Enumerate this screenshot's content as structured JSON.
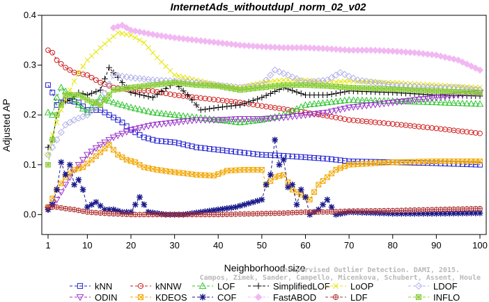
{
  "chart_data": {
    "type": "line",
    "title": "InternetAds_withoutdupl_norm_02_v02",
    "xlabel": "Neighborhood size",
    "ylabel": "Adjusted AP",
    "xlim": [
      1,
      100
    ],
    "ylim": [
      -0.04,
      0.4
    ],
    "xticks": [
      "1",
      "10",
      "20",
      "30",
      "40",
      "50",
      "60",
      "70",
      "80",
      "90",
      "100"
    ],
    "yticks": [
      "0.0",
      "0.1",
      "0.2",
      "0.3",
      "0.4"
    ],
    "grid": false,
    "legend_position": "bottom",
    "credit": "Campos, Zimek, Sander, Campello, Micenkova, Schubert, Assent, Houle",
    "credit_line2": "Unsupervised Outlier Detection. DAMI, 2015.",
    "series": [
      {
        "name": "kNN",
        "color": "#1f1fd0",
        "marker": "square",
        "points": [
          [
            1,
            0.26
          ],
          [
            2,
            0.245
          ],
          [
            3,
            0.22
          ],
          [
            5,
            0.23
          ],
          [
            8,
            0.225
          ],
          [
            10,
            0.21
          ],
          [
            13,
            0.21
          ],
          [
            15,
            0.2
          ],
          [
            18,
            0.185
          ],
          [
            20,
            0.17
          ],
          [
            23,
            0.155
          ],
          [
            26,
            0.148
          ],
          [
            30,
            0.145
          ],
          [
            35,
            0.135
          ],
          [
            40,
            0.13
          ],
          [
            45,
            0.125
          ],
          [
            50,
            0.12
          ],
          [
            55,
            0.118
          ],
          [
            60,
            0.115
          ],
          [
            65,
            0.112
          ],
          [
            70,
            0.107
          ],
          [
            80,
            0.105
          ],
          [
            90,
            0.103
          ],
          [
            100,
            0.1
          ]
        ]
      },
      {
        "name": "kNNW",
        "color": "#d01f1f",
        "marker": "circle",
        "points": [
          [
            1,
            0.33
          ],
          [
            2,
            0.325
          ],
          [
            3,
            0.31
          ],
          [
            5,
            0.295
          ],
          [
            7,
            0.285
          ],
          [
            10,
            0.28
          ],
          [
            13,
            0.265
          ],
          [
            16,
            0.255
          ],
          [
            20,
            0.25
          ],
          [
            25,
            0.248
          ],
          [
            30,
            0.24
          ],
          [
            35,
            0.235
          ],
          [
            40,
            0.23
          ],
          [
            45,
            0.225
          ],
          [
            50,
            0.218
          ],
          [
            55,
            0.212
          ],
          [
            60,
            0.205
          ],
          [
            65,
            0.198
          ],
          [
            70,
            0.19
          ],
          [
            80,
            0.182
          ],
          [
            90,
            0.173
          ],
          [
            100,
            0.163
          ]
        ]
      },
      {
        "name": "LOF",
        "color": "#2ec42e",
        "marker": "triangle-up",
        "points": [
          [
            1,
            0.205
          ],
          [
            2,
            0.2
          ],
          [
            3,
            0.235
          ],
          [
            4,
            0.255
          ],
          [
            6,
            0.24
          ],
          [
            8,
            0.22
          ],
          [
            10,
            0.205
          ],
          [
            13,
            0.235
          ],
          [
            16,
            0.225
          ],
          [
            20,
            0.215
          ],
          [
            25,
            0.205
          ],
          [
            30,
            0.2
          ],
          [
            35,
            0.195
          ],
          [
            40,
            0.19
          ],
          [
            45,
            0.185
          ],
          [
            50,
            0.19
          ],
          [
            55,
            0.2
          ],
          [
            60,
            0.22
          ],
          [
            65,
            0.225
          ],
          [
            70,
            0.23
          ],
          [
            80,
            0.228
          ],
          [
            90,
            0.225
          ],
          [
            100,
            0.222
          ]
        ]
      },
      {
        "name": "SimplifiedLOF",
        "color": "#000000",
        "marker": "plus",
        "points": [
          [
            1,
            0.135
          ],
          [
            2,
            0.15
          ],
          [
            3,
            0.2
          ],
          [
            4,
            0.225
          ],
          [
            6,
            0.23
          ],
          [
            8,
            0.245
          ],
          [
            10,
            0.24
          ],
          [
            13,
            0.25
          ],
          [
            15,
            0.295
          ],
          [
            17,
            0.275
          ],
          [
            20,
            0.245
          ],
          [
            25,
            0.235
          ],
          [
            30,
            0.265
          ],
          [
            33,
            0.24
          ],
          [
            36,
            0.21
          ],
          [
            40,
            0.215
          ],
          [
            45,
            0.22
          ],
          [
            50,
            0.235
          ],
          [
            55,
            0.255
          ],
          [
            60,
            0.24
          ],
          [
            65,
            0.24
          ],
          [
            70,
            0.248
          ],
          [
            80,
            0.245
          ],
          [
            90,
            0.24
          ],
          [
            100,
            0.238
          ]
        ]
      },
      {
        "name": "LoOP",
        "color": "#e6e600",
        "marker": "cross",
        "points": [
          [
            1,
            0.12
          ],
          [
            2,
            0.16
          ],
          [
            4,
            0.21
          ],
          [
            6,
            0.25
          ],
          [
            8,
            0.285
          ],
          [
            10,
            0.31
          ],
          [
            13,
            0.335
          ],
          [
            17,
            0.365
          ],
          [
            20,
            0.36
          ],
          [
            23,
            0.345
          ],
          [
            26,
            0.315
          ],
          [
            30,
            0.28
          ],
          [
            35,
            0.27
          ],
          [
            40,
            0.26
          ],
          [
            45,
            0.255
          ],
          [
            50,
            0.265
          ],
          [
            55,
            0.27
          ],
          [
            60,
            0.27
          ],
          [
            65,
            0.265
          ],
          [
            70,
            0.268
          ],
          [
            80,
            0.265
          ],
          [
            90,
            0.26
          ],
          [
            100,
            0.255
          ]
        ]
      },
      {
        "name": "LDOF",
        "color": "#b0b0e8",
        "marker": "diamond",
        "points": [
          [
            1,
            0.12
          ],
          [
            3,
            0.15
          ],
          [
            5,
            0.18
          ],
          [
            7,
            0.19
          ],
          [
            10,
            0.2
          ],
          [
            13,
            0.225
          ],
          [
            16,
            0.28
          ],
          [
            20,
            0.275
          ],
          [
            25,
            0.27
          ],
          [
            30,
            0.268
          ],
          [
            35,
            0.265
          ],
          [
            40,
            0.26
          ],
          [
            45,
            0.255
          ],
          [
            50,
            0.26
          ],
          [
            53,
            0.29
          ],
          [
            56,
            0.28
          ],
          [
            60,
            0.265
          ],
          [
            65,
            0.27
          ],
          [
            68,
            0.285
          ],
          [
            72,
            0.27
          ],
          [
            80,
            0.26
          ],
          [
            90,
            0.255
          ],
          [
            95,
            0.255
          ],
          [
            100,
            0.25
          ]
        ]
      },
      {
        "name": "ODIN",
        "color": "#9932cc",
        "marker": "triangle-down",
        "points": [
          [
            1,
            0.01
          ],
          [
            3,
            0.03
          ],
          [
            5,
            0.06
          ],
          [
            7,
            0.09
          ],
          [
            10,
            0.12
          ],
          [
            13,
            0.14
          ],
          [
            16,
            0.155
          ],
          [
            20,
            0.17
          ],
          [
            25,
            0.18
          ],
          [
            30,
            0.185
          ],
          [
            35,
            0.19
          ],
          [
            40,
            0.19
          ],
          [
            45,
            0.192
          ],
          [
            50,
            0.192
          ],
          [
            55,
            0.195
          ],
          [
            60,
            0.2
          ],
          [
            65,
            0.205
          ],
          [
            70,
            0.215
          ],
          [
            80,
            0.225
          ],
          [
            90,
            0.235
          ],
          [
            100,
            0.245
          ]
        ]
      },
      {
        "name": "KDEOS",
        "color": "#f2a600",
        "marker": "square-x",
        "points": [
          [
            1,
            0.015
          ],
          [
            3,
            0.05
          ],
          [
            5,
            0.075
          ],
          [
            7,
            0.09
          ],
          [
            9,
            0.095
          ],
          [
            11,
            0.11
          ],
          [
            13,
            0.125
          ],
          [
            15,
            0.14
          ],
          [
            17,
            0.12
          ],
          [
            19,
            0.11
          ],
          [
            21,
            0.105
          ],
          [
            23,
            0.095
          ],
          [
            26,
            0.09
          ],
          [
            30,
            0.085
          ],
          [
            35,
            0.08
          ],
          [
            39,
            0.078
          ],
          [
            42,
            0.088
          ],
          [
            46,
            0.09
          ],
          [
            50,
            0.09
          ],
          [
            51,
            0.06
          ],
          [
            53,
            0.075
          ],
          [
            55,
            0.08
          ],
          [
            57,
            0.05
          ],
          [
            59,
            0.04
          ],
          [
            61,
            0.03
          ],
          [
            63,
            0.06
          ],
          [
            65,
            0.075
          ],
          [
            67,
            0.09
          ],
          [
            70,
            0.1
          ],
          [
            80,
            0.105
          ],
          [
            90,
            0.107
          ],
          [
            100,
            0.107
          ]
        ]
      },
      {
        "name": "COF",
        "color": "#1a1a8c",
        "marker": "asterisk",
        "points": [
          [
            1,
            0.01
          ],
          [
            2,
            0.02
          ],
          [
            3,
            0.05
          ],
          [
            4,
            0.105
          ],
          [
            5,
            0.08
          ],
          [
            6,
            0.1
          ],
          [
            7,
            0.06
          ],
          [
            8,
            0.07
          ],
          [
            9,
            0.05
          ],
          [
            10,
            0.015
          ],
          [
            11,
            0.02
          ],
          [
            12,
            0.025
          ],
          [
            14,
            0.01
          ],
          [
            16,
            0.01
          ],
          [
            18,
            0.005
          ],
          [
            20,
            0.005
          ],
          [
            22,
            0.035
          ],
          [
            24,
            0.005
          ],
          [
            28,
            0.0
          ],
          [
            32,
            0.0
          ],
          [
            36,
            0.005
          ],
          [
            40,
            0.01
          ],
          [
            44,
            0.015
          ],
          [
            48,
            0.025
          ],
          [
            50,
            0.03
          ],
          [
            51,
            0.06
          ],
          [
            52,
            0.08
          ],
          [
            53,
            0.15
          ],
          [
            54,
            0.1
          ],
          [
            55,
            0.11
          ],
          [
            56,
            0.055
          ],
          [
            57,
            0.06
          ],
          [
            58,
            0.02
          ],
          [
            59,
            0.05
          ],
          [
            60,
            0.035
          ],
          [
            61,
            0.0
          ],
          [
            63,
            0.01
          ],
          [
            65,
            0.03
          ],
          [
            67,
            0.0
          ],
          [
            70,
            0.005
          ],
          [
            80,
            0.002
          ],
          [
            90,
            0.002
          ],
          [
            100,
            0.003
          ]
        ]
      },
      {
        "name": "FastABOD",
        "color": "#f2b8f2",
        "marker": "diamond-filled",
        "points": [
          [
            16,
            0.375
          ],
          [
            18,
            0.38
          ],
          [
            20,
            0.37
          ],
          [
            23,
            0.365
          ],
          [
            26,
            0.36
          ],
          [
            30,
            0.355
          ],
          [
            35,
            0.35
          ],
          [
            40,
            0.345
          ],
          [
            45,
            0.34
          ],
          [
            50,
            0.337
          ],
          [
            55,
            0.335
          ],
          [
            60,
            0.335
          ],
          [
            65,
            0.333
          ],
          [
            70,
            0.33
          ],
          [
            75,
            0.33
          ],
          [
            80,
            0.328
          ],
          [
            85,
            0.325
          ],
          [
            90,
            0.32
          ],
          [
            95,
            0.31
          ],
          [
            100,
            0.29
          ]
        ]
      },
      {
        "name": "LDF",
        "color": "#b03030",
        "marker": "circle-plus",
        "points": [
          [
            1,
            0.015
          ],
          [
            3,
            0.015
          ],
          [
            5,
            0.012
          ],
          [
            7,
            0.01
          ],
          [
            10,
            0.005
          ],
          [
            15,
            0.002
          ],
          [
            20,
            0.0
          ],
          [
            25,
            0.0
          ],
          [
            30,
            0.0
          ],
          [
            40,
            0.0
          ],
          [
            50,
            0.002
          ],
          [
            55,
            0.003
          ],
          [
            60,
            0.005
          ],
          [
            65,
            0.005
          ],
          [
            70,
            0.007
          ],
          [
            80,
            0.008
          ],
          [
            90,
            0.01
          ],
          [
            100,
            0.012
          ]
        ]
      },
      {
        "name": "INFLO",
        "color": "#88cc33",
        "marker": "square-star",
        "points": [
          [
            1,
            0.1
          ],
          [
            3,
            0.2
          ],
          [
            5,
            0.24
          ],
          [
            8,
            0.24
          ],
          [
            10,
            0.23
          ],
          [
            13,
            0.22
          ],
          [
            16,
            0.25
          ],
          [
            20,
            0.255
          ],
          [
            25,
            0.26
          ],
          [
            30,
            0.265
          ],
          [
            35,
            0.26
          ],
          [
            40,
            0.258
          ],
          [
            45,
            0.25
          ],
          [
            50,
            0.255
          ],
          [
            55,
            0.26
          ],
          [
            60,
            0.26
          ],
          [
            65,
            0.258
          ],
          [
            70,
            0.255
          ],
          [
            80,
            0.252
          ],
          [
            90,
            0.248
          ],
          [
            100,
            0.245
          ]
        ]
      }
    ]
  }
}
